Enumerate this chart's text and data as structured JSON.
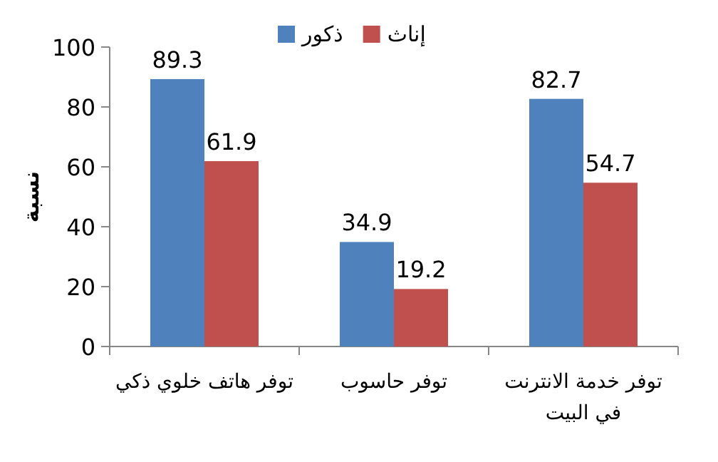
{
  "chart_data": {
    "type": "bar",
    "ylabel": "نسبة",
    "categories": [
      "توفر هاتف خلوي ذكي",
      "توفر حاسوب",
      "توفر خدمة الانترنت في البيت"
    ],
    "series": [
      {
        "name": "ذكور",
        "color": "#4f81bd",
        "values": [
          89.3,
          34.9,
          82.7
        ]
      },
      {
        "name": "إناث",
        "color": "#c0504d",
        "values": [
          61.9,
          19.2,
          54.7
        ]
      }
    ],
    "ylim": [
      0,
      100
    ],
    "yticks": [
      0,
      20,
      40,
      60,
      80,
      100
    ],
    "data_labels": true,
    "legend": "top",
    "grid": false
  }
}
